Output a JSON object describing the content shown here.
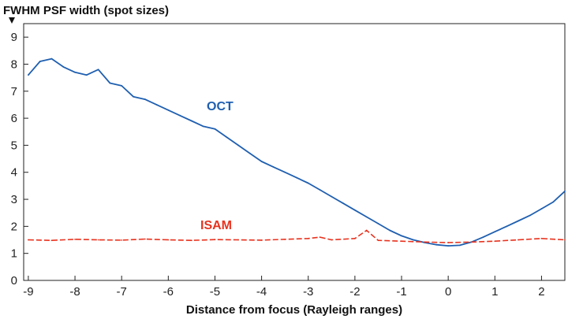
{
  "chart_data": {
    "type": "line",
    "title": "FWHM PSF width (spot sizes)",
    "xlabel": "Distance from focus (Rayleigh ranges)",
    "ylabel": "",
    "xlim": [
      -9.1,
      2.5
    ],
    "ylim": [
      0,
      9.5
    ],
    "xticks": [
      -9,
      -8,
      -7,
      -6,
      -5,
      -4,
      -3,
      -2,
      -1,
      0,
      1,
      2
    ],
    "yticks": [
      0,
      1,
      2,
      3,
      4,
      5,
      6,
      7,
      8,
      9
    ],
    "grid": false,
    "series": [
      {
        "name": "OCT",
        "color": "#1f5fb0",
        "x": [
          -9.0,
          -8.75,
          -8.5,
          -8.25,
          -8.0,
          -7.75,
          -7.5,
          -7.25,
          -7.0,
          -6.75,
          -6.5,
          -6.25,
          -6.0,
          -5.75,
          -5.5,
          -5.25,
          -5.0,
          -4.75,
          -4.5,
          -4.25,
          -4.0,
          -3.75,
          -3.5,
          -3.25,
          -3.0,
          -2.75,
          -2.5,
          -2.25,
          -2.0,
          -1.75,
          -1.5,
          -1.25,
          -1.0,
          -0.75,
          -0.5,
          -0.25,
          0.0,
          0.25,
          0.5,
          0.75,
          1.0,
          1.25,
          1.5,
          1.75,
          2.0,
          2.25,
          2.5
        ],
        "y": [
          7.6,
          8.1,
          8.2,
          7.9,
          7.7,
          7.6,
          7.8,
          7.3,
          7.2,
          6.8,
          6.7,
          6.5,
          6.3,
          6.1,
          5.9,
          5.7,
          5.6,
          5.3,
          5.0,
          4.7,
          4.4,
          4.2,
          4.0,
          3.8,
          3.6,
          3.35,
          3.1,
          2.85,
          2.6,
          2.35,
          2.1,
          1.85,
          1.65,
          1.5,
          1.4,
          1.32,
          1.28,
          1.3,
          1.42,
          1.6,
          1.8,
          2.0,
          2.2,
          2.4,
          2.65,
          2.9,
          3.3
        ]
      },
      {
        "name": "ISAM",
        "color": "#e8321e",
        "x": [
          -9.0,
          -8.5,
          -8.0,
          -7.5,
          -7.0,
          -6.5,
          -6.0,
          -5.5,
          -5.0,
          -4.5,
          -4.0,
          -3.5,
          -3.0,
          -2.75,
          -2.5,
          -2.0,
          -1.75,
          -1.5,
          -1.0,
          -0.5,
          0.0,
          0.5,
          1.0,
          1.5,
          2.0,
          2.5
        ],
        "y": [
          1.5,
          1.48,
          1.52,
          1.5,
          1.49,
          1.53,
          1.5,
          1.48,
          1.51,
          1.5,
          1.49,
          1.52,
          1.55,
          1.6,
          1.5,
          1.55,
          1.85,
          1.48,
          1.45,
          1.42,
          1.4,
          1.42,
          1.45,
          1.5,
          1.55,
          1.5
        ]
      }
    ]
  }
}
